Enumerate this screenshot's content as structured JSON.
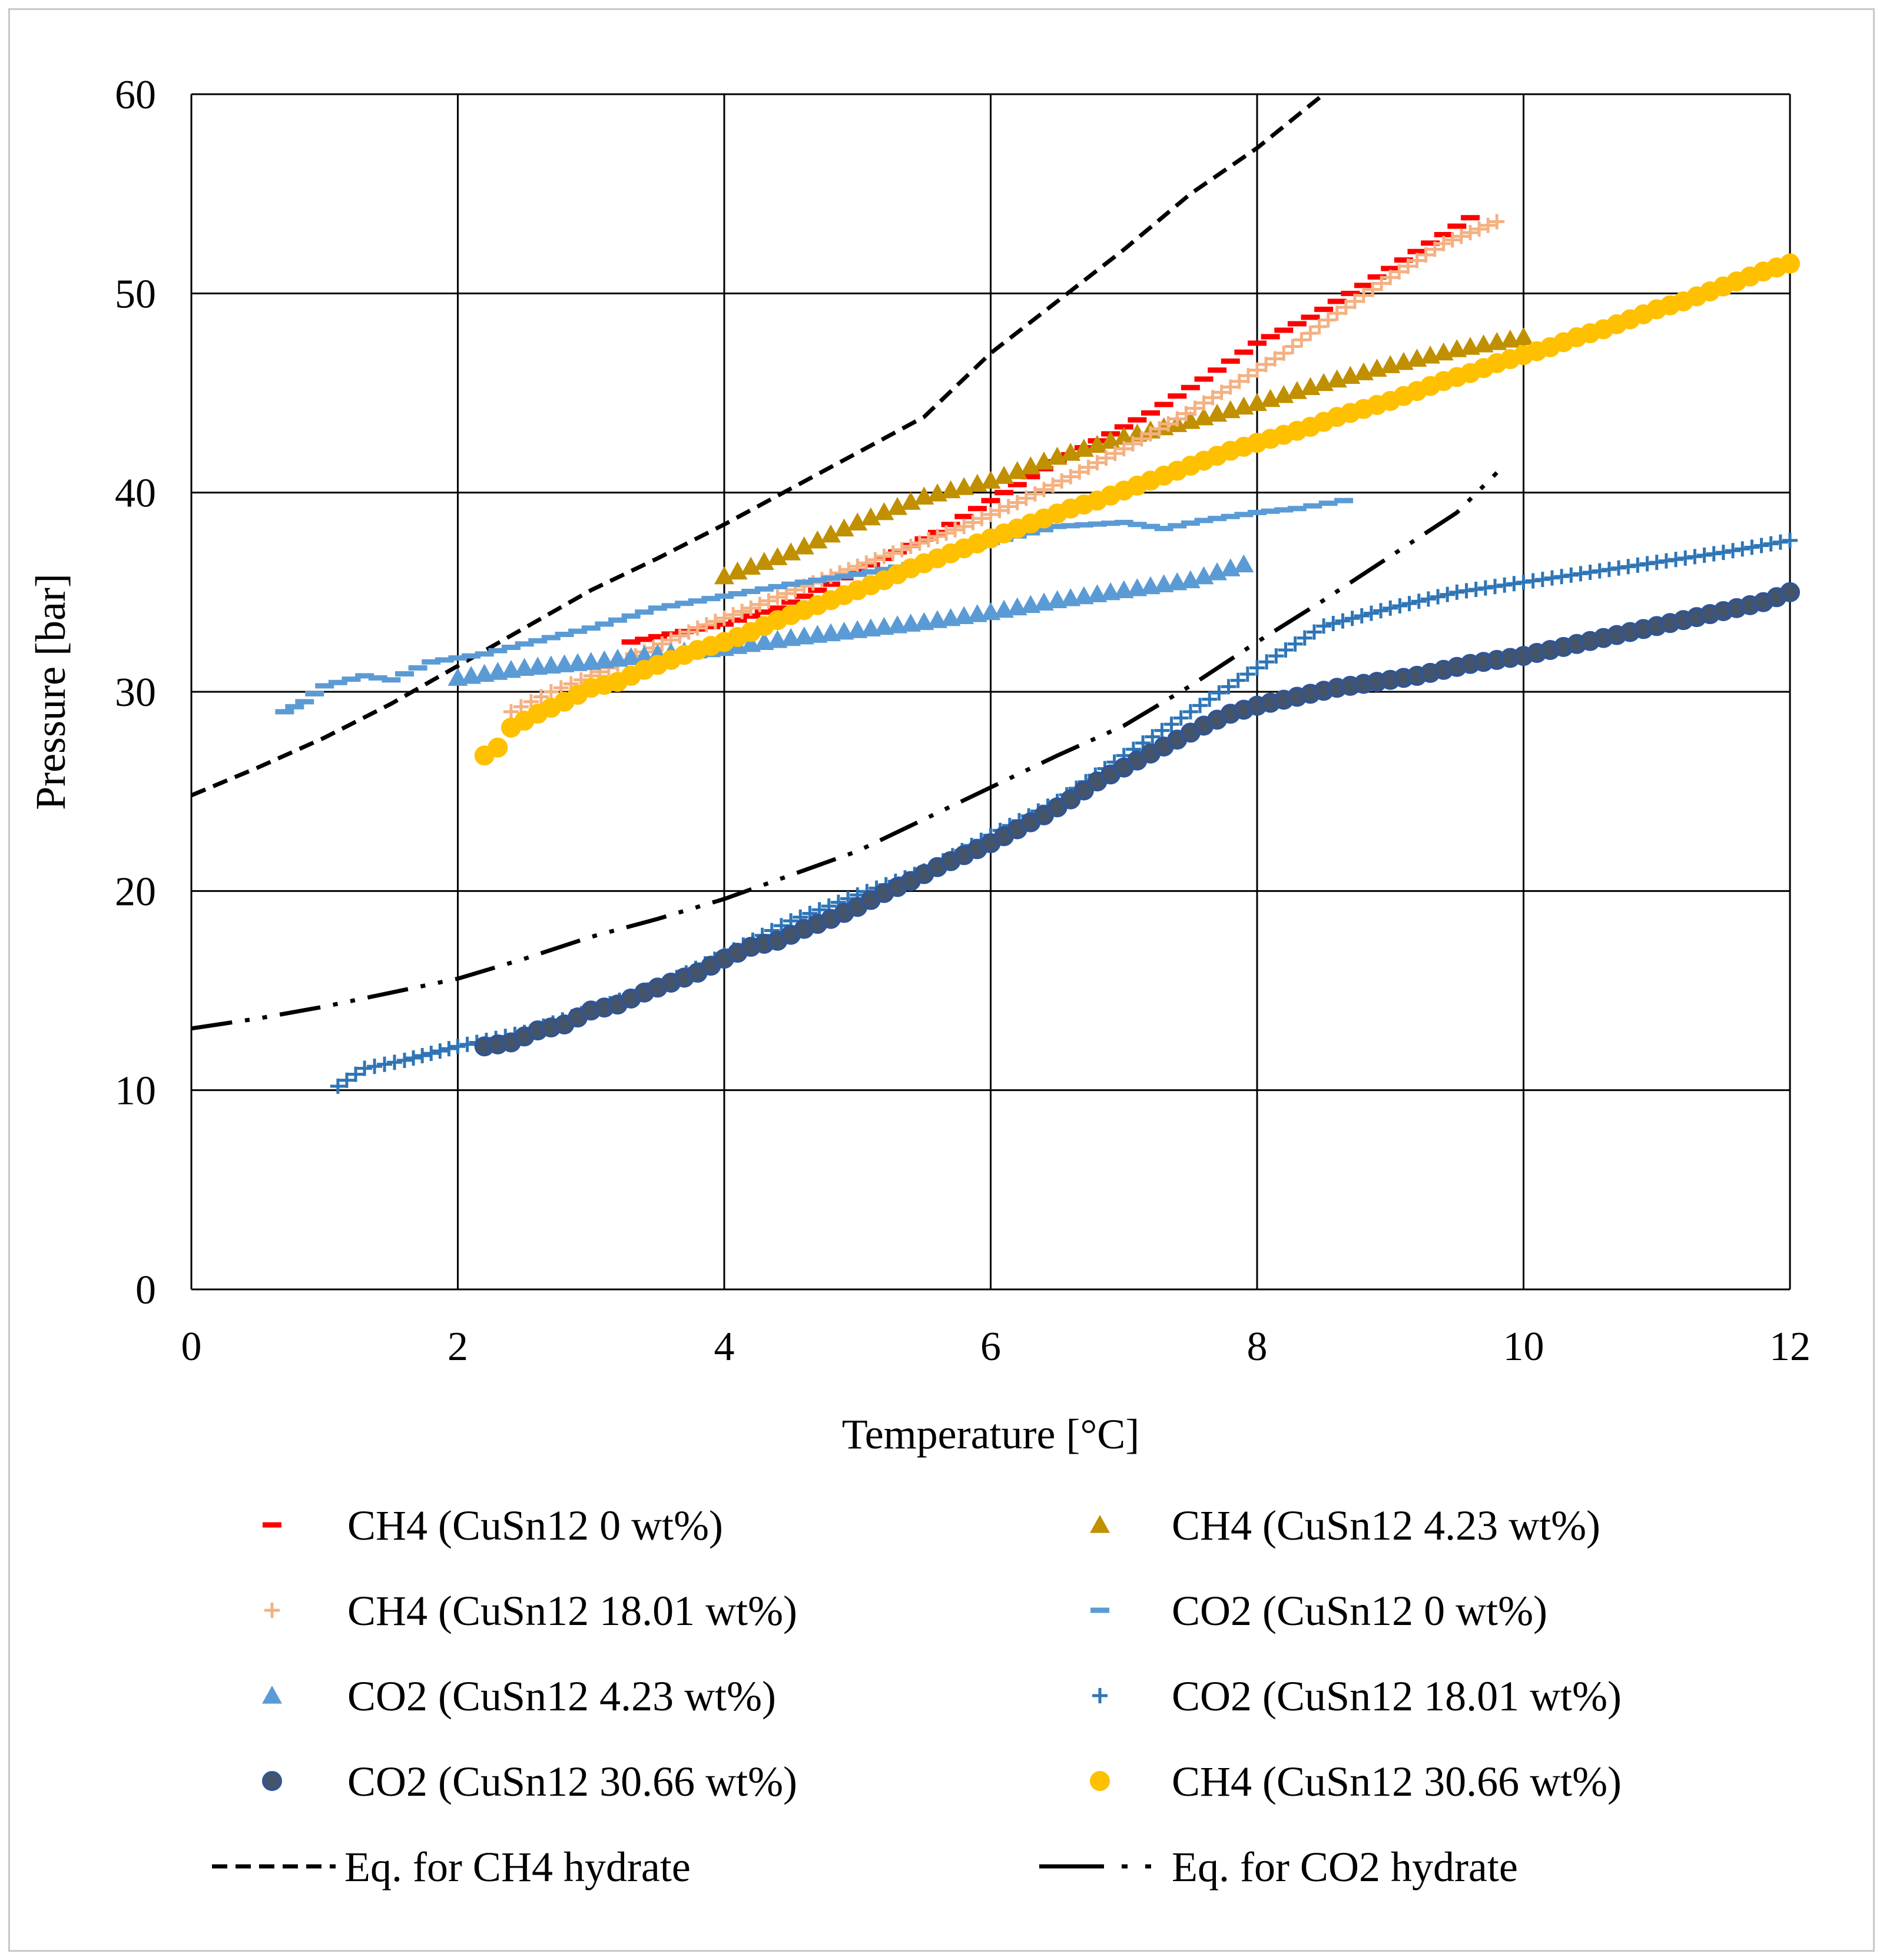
{
  "chart_data": {
    "type": "scatter",
    "title": "",
    "xlabel": "Temperature [°C]",
    "ylabel": "Pressure [bar]",
    "xlim": [
      0,
      12
    ],
    "ylim": [
      0,
      60
    ],
    "xticks": [
      0,
      2,
      4,
      6,
      8,
      10,
      12
    ],
    "yticks": [
      0,
      10,
      20,
      30,
      40,
      50,
      60
    ],
    "x_tick_labels": [
      "0",
      "2",
      "4",
      "6",
      "8",
      "10",
      "12"
    ],
    "y_tick_labels": [
      "0",
      "10",
      "20",
      "30",
      "40",
      "50",
      "60"
    ],
    "grid": true,
    "legend_position": "bottom",
    "series": [
      {
        "name": "CH4 (CuSn12 0 wt%)",
        "marker": "dash",
        "color": "#ff0000",
        "points": [
          [
            3.3,
            32.5
          ],
          [
            3.6,
            32.9
          ],
          [
            4.0,
            33.4
          ],
          [
            4.4,
            34.2
          ],
          [
            4.8,
            35.4
          ],
          [
            5.2,
            36.7
          ],
          [
            5.6,
            38.0
          ],
          [
            6.0,
            39.6
          ],
          [
            6.4,
            41.2
          ],
          [
            6.8,
            42.6
          ],
          [
            7.2,
            44.0
          ],
          [
            7.6,
            45.7
          ],
          [
            8.0,
            47.5
          ],
          [
            8.4,
            48.8
          ],
          [
            8.8,
            50.4
          ],
          [
            9.2,
            52.1
          ],
          [
            9.6,
            53.8
          ]
        ]
      },
      {
        "name": "CH4 (CuSn12 4.23 wt%)",
        "marker": "triangle",
        "color": "#c09000",
        "points": [
          [
            4.0,
            35.8
          ],
          [
            4.5,
            37.0
          ],
          [
            5.0,
            38.5
          ],
          [
            5.5,
            39.8
          ],
          [
            6.0,
            40.6
          ],
          [
            6.5,
            41.8
          ],
          [
            7.0,
            42.8
          ],
          [
            7.5,
            43.6
          ],
          [
            8.0,
            44.5
          ],
          [
            8.5,
            45.5
          ],
          [
            9.0,
            46.4
          ],
          [
            9.5,
            47.2
          ],
          [
            10.0,
            47.8
          ]
        ]
      },
      {
        "name": "CH4 (CuSn12 18.01 wt%)",
        "marker": "plus",
        "color": "#f4b183",
        "points": [
          [
            2.4,
            29.0
          ],
          [
            2.7,
            30.0
          ],
          [
            3.0,
            30.8
          ],
          [
            3.4,
            32.0
          ],
          [
            3.8,
            33.2
          ],
          [
            4.2,
            34.2
          ],
          [
            4.6,
            35.3
          ],
          [
            5.0,
            36.3
          ],
          [
            5.4,
            37.3
          ],
          [
            5.8,
            38.3
          ],
          [
            6.2,
            39.5
          ],
          [
            6.6,
            40.8
          ],
          [
            7.0,
            42.2
          ],
          [
            7.4,
            43.7
          ],
          [
            7.8,
            45.3
          ],
          [
            8.2,
            47.0
          ],
          [
            8.6,
            49.0
          ],
          [
            9.0,
            50.8
          ],
          [
            9.4,
            52.5
          ],
          [
            9.8,
            53.6
          ]
        ]
      },
      {
        "name": "CO2 (CuSn12 0 wt%)",
        "marker": "dash",
        "color": "#5b9bd5",
        "points": [
          [
            0.7,
            29.0
          ],
          [
            0.85,
            29.5
          ],
          [
            1.0,
            30.3
          ],
          [
            1.3,
            30.8
          ],
          [
            1.5,
            30.6
          ],
          [
            1.8,
            31.5
          ],
          [
            2.0,
            31.7
          ],
          [
            2.2,
            31.9
          ],
          [
            2.5,
            32.4
          ],
          [
            3.0,
            33.2
          ],
          [
            3.5,
            34.2
          ],
          [
            4.0,
            34.8
          ],
          [
            4.5,
            35.4
          ],
          [
            5.0,
            35.9
          ],
          [
            5.5,
            36.5
          ],
          [
            6.0,
            37.5
          ],
          [
            6.5,
            38.3
          ],
          [
            7.0,
            38.5
          ],
          [
            7.3,
            38.2
          ],
          [
            7.6,
            38.6
          ],
          [
            8.0,
            39.0
          ],
          [
            8.3,
            39.2
          ],
          [
            8.65,
            39.6
          ]
        ]
      },
      {
        "name": "CO2 (CuSn12 4.23 wt%)",
        "marker": "triangle",
        "color": "#5b9bd5",
        "points": [
          [
            2.0,
            30.7
          ],
          [
            2.5,
            31.2
          ],
          [
            3.0,
            31.5
          ],
          [
            3.5,
            31.9
          ],
          [
            4.0,
            32.2
          ],
          [
            4.5,
            32.7
          ],
          [
            5.0,
            33.1
          ],
          [
            5.5,
            33.5
          ],
          [
            6.0,
            34.0
          ],
          [
            6.5,
            34.6
          ],
          [
            7.0,
            35.1
          ],
          [
            7.5,
            35.6
          ],
          [
            7.9,
            36.4
          ]
        ]
      },
      {
        "name": "CO2 (CuSn12 18.01 wt%)",
        "marker": "plus",
        "color": "#2e75b6",
        "points": [
          [
            1.1,
            10.2
          ],
          [
            1.3,
            11.1
          ],
          [
            1.6,
            11.5
          ],
          [
            2.0,
            12.2
          ],
          [
            2.5,
            12.9
          ],
          [
            3.0,
            14.0
          ],
          [
            3.5,
            15.2
          ],
          [
            4.0,
            16.8
          ],
          [
            4.5,
            18.5
          ],
          [
            5.0,
            19.8
          ],
          [
            5.5,
            21.0
          ],
          [
            6.0,
            22.8
          ],
          [
            6.5,
            24.5
          ],
          [
            7.0,
            26.8
          ],
          [
            7.5,
            29.0
          ],
          [
            8.0,
            31.2
          ],
          [
            8.5,
            33.3
          ],
          [
            9.0,
            34.2
          ],
          [
            9.5,
            35.0
          ],
          [
            10.0,
            35.5
          ],
          [
            10.5,
            36.0
          ],
          [
            11.0,
            36.5
          ],
          [
            11.5,
            37.0
          ],
          [
            12.0,
            37.6
          ]
        ]
      },
      {
        "name": "CO2 (CuSn12 30.66 wt%)",
        "marker": "circle",
        "color": "#44546a",
        "points": [
          [
            2.2,
            12.2
          ],
          [
            2.4,
            12.4
          ],
          [
            2.6,
            13.0
          ],
          [
            2.8,
            13.3
          ],
          [
            3.0,
            14.0
          ],
          [
            3.2,
            14.3
          ],
          [
            3.4,
            14.9
          ],
          [
            3.6,
            15.4
          ],
          [
            3.8,
            15.9
          ],
          [
            4.0,
            16.6
          ],
          [
            4.2,
            17.2
          ],
          [
            4.4,
            17.5
          ],
          [
            4.6,
            18.1
          ],
          [
            4.8,
            18.6
          ],
          [
            5.0,
            19.2
          ],
          [
            5.2,
            19.9
          ],
          [
            5.4,
            20.5
          ],
          [
            5.6,
            21.2
          ],
          [
            5.8,
            21.8
          ],
          [
            6.0,
            22.4
          ],
          [
            6.2,
            23.1
          ],
          [
            6.4,
            23.8
          ],
          [
            6.6,
            24.6
          ],
          [
            6.8,
            25.5
          ],
          [
            7.0,
            26.2
          ],
          [
            7.2,
            26.9
          ],
          [
            7.4,
            27.6
          ],
          [
            7.6,
            28.3
          ],
          [
            7.8,
            28.9
          ],
          [
            8.0,
            29.3
          ],
          [
            8.2,
            29.6
          ],
          [
            8.4,
            29.9
          ],
          [
            8.6,
            30.2
          ],
          [
            8.8,
            30.4
          ],
          [
            9.0,
            30.6
          ],
          [
            9.2,
            30.8
          ],
          [
            9.4,
            31.1
          ],
          [
            9.6,
            31.4
          ],
          [
            9.8,
            31.6
          ],
          [
            10.0,
            31.8
          ],
          [
            10.2,
            32.1
          ],
          [
            10.4,
            32.4
          ],
          [
            10.6,
            32.7
          ],
          [
            10.8,
            33.0
          ],
          [
            11.0,
            33.3
          ],
          [
            11.2,
            33.6
          ],
          [
            11.4,
            33.9
          ],
          [
            11.6,
            34.2
          ],
          [
            11.8,
            34.5
          ],
          [
            12.0,
            35.0
          ]
        ]
      },
      {
        "name": "CH4 (CuSn12 30.66 wt%)",
        "marker": "circle",
        "color": "#ffc000",
        "points": [
          [
            2.2,
            26.8
          ],
          [
            2.3,
            27.2
          ],
          [
            2.4,
            28.2
          ],
          [
            2.6,
            28.9
          ],
          [
            2.8,
            29.5
          ],
          [
            3.0,
            30.2
          ],
          [
            3.2,
            30.5
          ],
          [
            3.4,
            31.1
          ],
          [
            3.6,
            31.6
          ],
          [
            3.8,
            32.1
          ],
          [
            4.0,
            32.5
          ],
          [
            4.2,
            33.0
          ],
          [
            4.4,
            33.6
          ],
          [
            4.6,
            34.1
          ],
          [
            4.8,
            34.6
          ],
          [
            5.0,
            35.1
          ],
          [
            5.2,
            35.6
          ],
          [
            5.4,
            36.2
          ],
          [
            5.6,
            36.7
          ],
          [
            5.8,
            37.2
          ],
          [
            6.0,
            37.7
          ],
          [
            6.2,
            38.2
          ],
          [
            6.4,
            38.7
          ],
          [
            6.6,
            39.2
          ],
          [
            6.8,
            39.6
          ],
          [
            7.0,
            40.1
          ],
          [
            7.2,
            40.6
          ],
          [
            7.4,
            41.1
          ],
          [
            7.6,
            41.6
          ],
          [
            7.8,
            42.1
          ],
          [
            8.0,
            42.5
          ],
          [
            8.2,
            42.9
          ],
          [
            8.4,
            43.3
          ],
          [
            8.6,
            43.8
          ],
          [
            8.8,
            44.2
          ],
          [
            9.0,
            44.6
          ],
          [
            9.2,
            45.1
          ],
          [
            9.4,
            45.6
          ],
          [
            9.6,
            46.0
          ],
          [
            9.8,
            46.5
          ],
          [
            10.0,
            46.9
          ],
          [
            10.2,
            47.3
          ],
          [
            10.4,
            47.8
          ],
          [
            10.6,
            48.2
          ],
          [
            10.8,
            48.7
          ],
          [
            11.0,
            49.2
          ],
          [
            11.2,
            49.6
          ],
          [
            11.4,
            50.1
          ],
          [
            11.6,
            50.6
          ],
          [
            11.8,
            51.1
          ],
          [
            12.0,
            51.5
          ]
        ]
      },
      {
        "name": "Eq. for CH4 hydrate",
        "marker": "dashed-line",
        "color": "#000000",
        "points": [
          [
            0,
            24.8
          ],
          [
            0.5,
            26.2
          ],
          [
            1.0,
            27.7
          ],
          [
            1.5,
            29.4
          ],
          [
            2.0,
            31.3
          ],
          [
            2.5,
            33.2
          ],
          [
            3.0,
            35.1
          ],
          [
            3.5,
            36.7
          ],
          [
            4.0,
            38.4
          ],
          [
            4.5,
            40.2
          ],
          [
            5.0,
            42.0
          ],
          [
            5.5,
            43.8
          ],
          [
            6.0,
            47.0
          ],
          [
            6.5,
            49.6
          ],
          [
            7.0,
            52.2
          ],
          [
            7.5,
            55.0
          ],
          [
            8.0,
            57.3
          ],
          [
            8.5,
            60.0
          ]
        ]
      },
      {
        "name": "Eq. for CO2 hydrate",
        "marker": "dash-dot-line",
        "color": "#000000",
        "points": [
          [
            0,
            13.1
          ],
          [
            0.5,
            13.6
          ],
          [
            1.0,
            14.2
          ],
          [
            1.5,
            14.9
          ],
          [
            2.0,
            15.6
          ],
          [
            2.5,
            16.6
          ],
          [
            3.0,
            17.7
          ],
          [
            3.5,
            18.6
          ],
          [
            4.0,
            19.6
          ],
          [
            4.5,
            20.8
          ],
          [
            5.0,
            22.0
          ],
          [
            5.5,
            23.6
          ],
          [
            6.0,
            25.2
          ],
          [
            6.5,
            26.8
          ],
          [
            7.0,
            28.3
          ],
          [
            7.5,
            30.3
          ],
          [
            8.0,
            32.5
          ],
          [
            8.5,
            34.6
          ],
          [
            9.0,
            36.8
          ],
          [
            9.5,
            39.0
          ],
          [
            9.8,
            41.0
          ]
        ]
      }
    ]
  }
}
